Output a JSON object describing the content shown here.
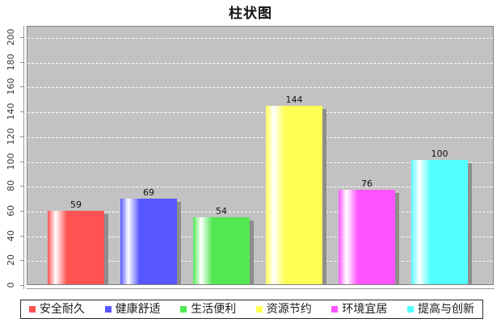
{
  "chart_data": {
    "type": "bar",
    "title": "柱状图",
    "categories": [
      "安全耐久",
      "健康舒适",
      "生活便利",
      "资源节约",
      "环境宜居",
      "提高与创新"
    ],
    "values": [
      59,
      69,
      54,
      144,
      76,
      100
    ],
    "colors": [
      "#ff5252",
      "#5757ff",
      "#52e852",
      "#ffff54",
      "#ff54ff",
      "#54ffff"
    ],
    "value_labels": [
      "59",
      "69",
      "54",
      "144",
      "76",
      "100"
    ],
    "xlabel": "",
    "ylabel": "",
    "ylim": [
      0,
      200
    ],
    "y_ticks": [
      "0",
      "20",
      "40",
      "60",
      "80",
      "100",
      "120",
      "140",
      "160",
      "180",
      "200"
    ],
    "grid": true,
    "gridline_style": "white-dashed",
    "plot_background": "#c2c2c2",
    "bar_shadow_color": "#8d8d8d",
    "legend_position": "bottom"
  }
}
